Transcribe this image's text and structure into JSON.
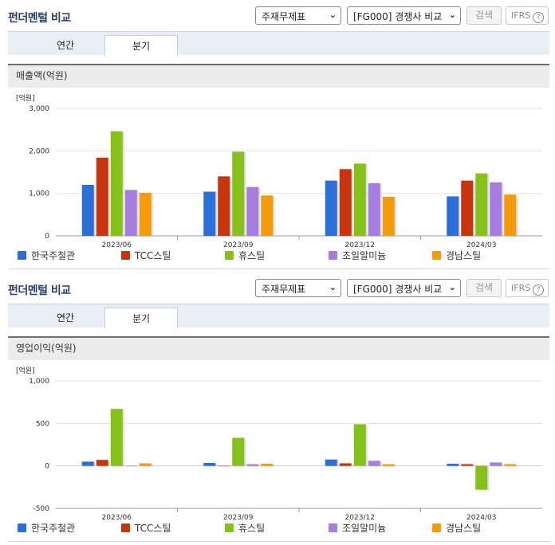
{
  "header": {
    "title": "펀더멘털 비교",
    "statement_select": "주재무제표",
    "compare_select": "[FG000] 경쟁사 비교",
    "search_label": "검색",
    "ifrs_label": "IFRS",
    "help_label": "?"
  },
  "tabs": [
    "연간",
    "분기"
  ],
  "active_tab": "분기",
  "legend": [
    {
      "name": "한국주철관",
      "color": "#2b6fd8"
    },
    {
      "name": "TCC스틸",
      "color": "#c8340c"
    },
    {
      "name": "휴스틸",
      "color": "#86c11a"
    },
    {
      "name": "조일알미늄",
      "color": "#a57ee0"
    },
    {
      "name": "경남스틸",
      "color": "#f39b0b"
    }
  ],
  "chart_data": [
    {
      "type": "bar",
      "section_title": "매출액(억원)",
      "unit_label": "[억원]",
      "categories": [
        "2023/06",
        "2023/09",
        "2023/12",
        "2024/03"
      ],
      "ylim": [
        0,
        3000
      ],
      "yticks": [
        0,
        1000,
        2000,
        3000
      ],
      "ytick_labels": [
        "0",
        "1,000",
        "2,000",
        "3,000"
      ],
      "series": [
        {
          "name": "한국주철관",
          "values": [
            1200,
            1040,
            1300,
            930
          ]
        },
        {
          "name": "TCC스틸",
          "values": [
            1840,
            1400,
            1570,
            1300
          ]
        },
        {
          "name": "휴스틸",
          "values": [
            2460,
            1980,
            1700,
            1470
          ]
        },
        {
          "name": "조일알미늄",
          "values": [
            1080,
            1150,
            1240,
            1260
          ]
        },
        {
          "name": "경남스틸",
          "values": [
            1010,
            950,
            920,
            970
          ]
        }
      ]
    },
    {
      "type": "bar",
      "section_title": "영업이익(억원)",
      "unit_label": "[억원]",
      "categories": [
        "2023/06",
        "2023/09",
        "2023/12",
        "2024/03"
      ],
      "ylim": [
        -500,
        1000
      ],
      "yticks": [
        -500,
        0,
        500,
        1000
      ],
      "ytick_labels": [
        "-500",
        "0",
        "500",
        "1,000"
      ],
      "series": [
        {
          "name": "한국주철관",
          "values": [
            50,
            35,
            75,
            25
          ]
        },
        {
          "name": "TCC스틸",
          "values": [
            70,
            0,
            30,
            20
          ]
        },
        {
          "name": "휴스틸",
          "values": [
            670,
            330,
            490,
            -280
          ]
        },
        {
          "name": "조일알미늄",
          "values": [
            0,
            20,
            60,
            40
          ]
        },
        {
          "name": "경남스틸",
          "values": [
            30,
            25,
            20,
            20
          ]
        }
      ]
    }
  ]
}
